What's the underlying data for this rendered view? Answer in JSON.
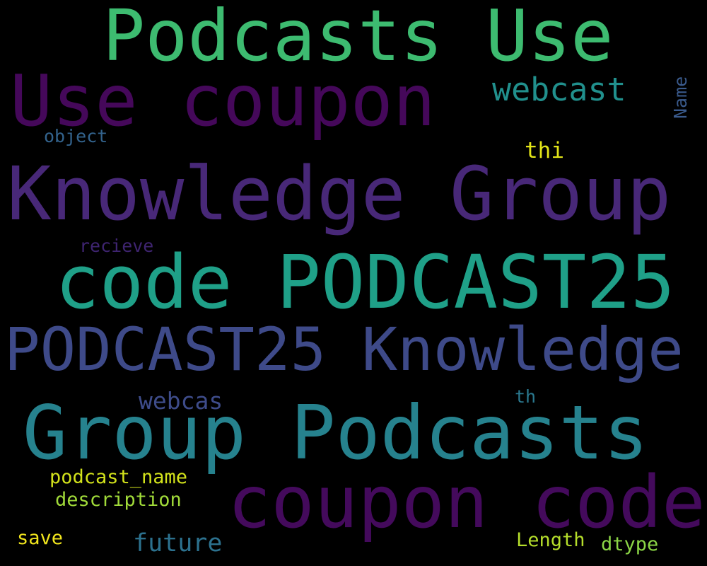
{
  "word_cloud": {
    "background": "#000000",
    "words": {
      "podcasts_use": {
        "text": "Podcasts Use",
        "color": "#3dbb70"
      },
      "use_coupon": {
        "text": "Use coupon",
        "color": "#45085a"
      },
      "webcast": {
        "text": "webcast",
        "color": "#21908d"
      },
      "name": {
        "text": "Name",
        "color": "#3a5a8c"
      },
      "object": {
        "text": "object",
        "color": "#33638d"
      },
      "thi": {
        "text": "thi",
        "color": "#e2e418"
      },
      "knowledge_group": {
        "text": "Knowledge Group",
        "color": "#482878"
      },
      "recieve": {
        "text": "recieve",
        "color": "#3e2470"
      },
      "code_podcast25": {
        "text": "code PODCAST25",
        "color": "#1fa088"
      },
      "podcast25_knowledge": {
        "text": "PODCAST25 Knowledge",
        "color": "#3e4a89"
      },
      "webcas": {
        "text": "webcas",
        "color": "#3e4c8a"
      },
      "th": {
        "text": "th",
        "color": "#2a788e"
      },
      "group_podcasts": {
        "text": "Group Podcasts",
        "color": "#26828e"
      },
      "coupon_code": {
        "text": "coupon code",
        "color": "#440a5c"
      },
      "podcast_name": {
        "text": "podcast_name",
        "color": "#d2e21b"
      },
      "description": {
        "text": "description",
        "color": "#a0da39"
      },
      "save": {
        "text": "save",
        "color": "#f1e51d"
      },
      "future": {
        "text": "future",
        "color": "#2c718e"
      },
      "length": {
        "text": "Length",
        "color": "#b5de2b"
      },
      "dtype": {
        "text": "dtype",
        "color": "#8bd646"
      }
    }
  }
}
